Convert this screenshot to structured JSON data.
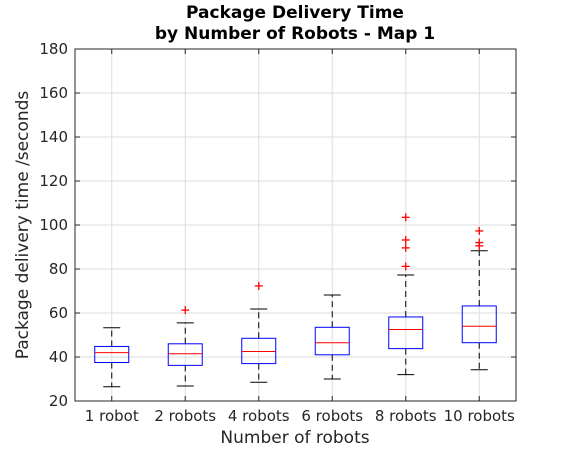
{
  "chart_data": {
    "type": "boxplot",
    "title_line1": "Package Delivery Time",
    "title_line2": "by Number of Robots - Map 1",
    "xlabel": "Number of robots",
    "ylabel": "Package delivery time /seconds",
    "ylim": [
      20,
      180
    ],
    "yticks": [
      20,
      40,
      60,
      80,
      100,
      120,
      140,
      160,
      180
    ],
    "grid": true,
    "colors": {
      "box": "#0000ff",
      "median": "#ff0000",
      "whisker": "#000000",
      "outlier": "#ff0000",
      "grid": "#dedede",
      "axis": "#262626"
    },
    "categories": [
      "1 robot",
      "2 robots",
      "4 robots",
      "6 robots",
      "8 robots",
      "10 robots"
    ],
    "boxes": [
      {
        "whisker_low": 26.5,
        "q1": 37.5,
        "median": 42.0,
        "q3": 44.8,
        "whisker_high": 53.3,
        "outliers": []
      },
      {
        "whisker_low": 26.8,
        "q1": 36.2,
        "median": 41.5,
        "q3": 46.0,
        "whisker_high": 55.5,
        "outliers": [
          61.3
        ]
      },
      {
        "whisker_low": 28.5,
        "q1": 37.0,
        "median": 42.5,
        "q3": 48.5,
        "whisker_high": 61.8,
        "outliers": [
          72.3
        ]
      },
      {
        "whisker_low": 30.0,
        "q1": 41.0,
        "median": 46.5,
        "q3": 53.5,
        "whisker_high": 68.2,
        "outliers": []
      },
      {
        "whisker_low": 32.0,
        "q1": 43.8,
        "median": 52.5,
        "q3": 58.2,
        "whisker_high": 77.3,
        "outliers": [
          81.2,
          89.6,
          93.2,
          103.5
        ]
      },
      {
        "whisker_low": 34.2,
        "q1": 46.5,
        "median": 54.0,
        "q3": 63.2,
        "whisker_high": 88.3,
        "outliers": [
          90.5,
          92.0,
          97.3
        ]
      }
    ]
  }
}
